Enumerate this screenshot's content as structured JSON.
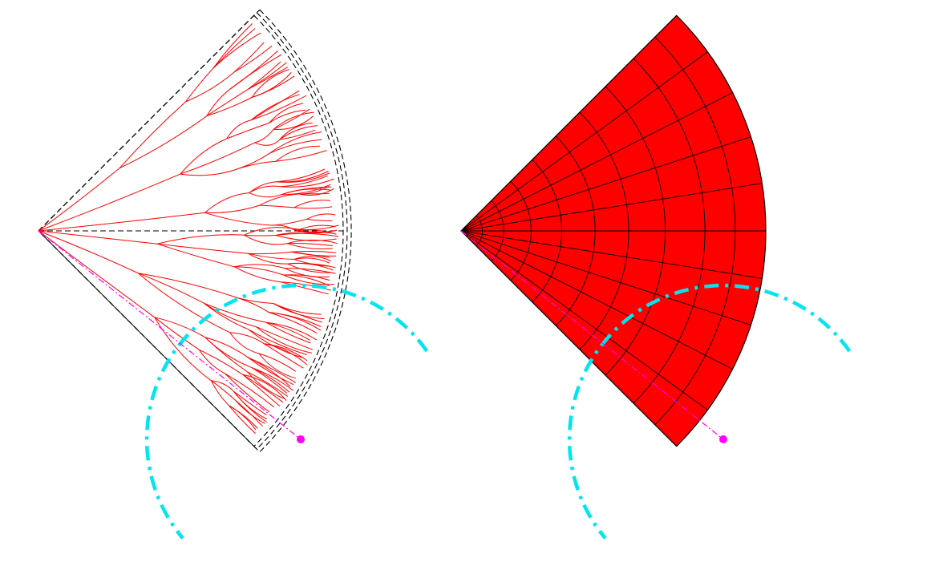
{
  "figure": {
    "panels": [
      {
        "id": "left",
        "description_visible": "",
        "style": "branching-tree-in-sector"
      },
      {
        "id": "right",
        "description_visible": "",
        "style": "filled-polar-grid-sector"
      }
    ]
  },
  "colors": {
    "tree": "#ff0000",
    "sector_fill": "#ff0000",
    "sector_grid": "#000000",
    "outline_dash": "#000000",
    "arc": "#00e5ee",
    "marker": "#ff00ff",
    "marker_line": "#ff00ff"
  }
}
